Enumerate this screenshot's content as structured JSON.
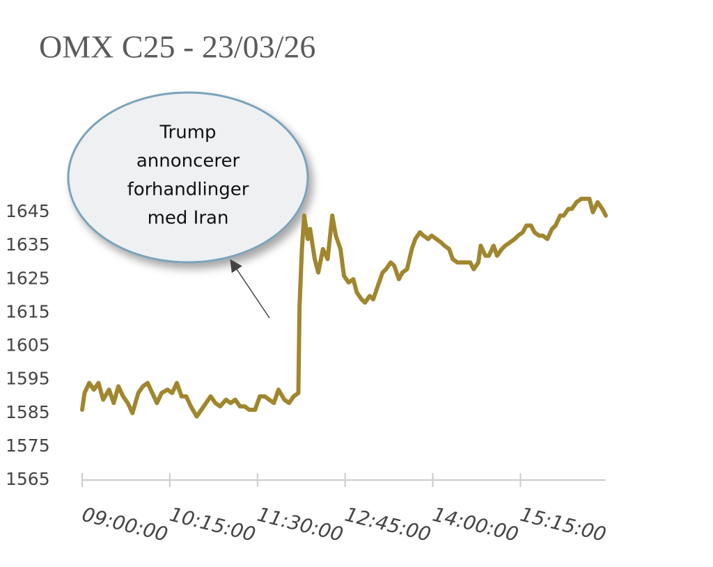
{
  "chart_data": {
    "type": "line",
    "title": "OMX C25 - 23/03/26",
    "annotation": [
      "Trump",
      "annoncerer",
      "forhandlinger",
      "med Iran"
    ],
    "x": [
      540,
      542,
      546,
      550,
      554,
      558,
      563,
      567,
      571,
      575,
      579,
      583,
      588,
      592,
      596,
      600,
      604,
      608,
      613,
      617,
      621,
      625,
      629,
      633,
      638,
      642,
      646,
      650,
      654,
      658,
      663,
      667,
      671,
      675,
      679,
      683,
      688,
      692,
      696,
      700,
      704,
      708,
      713,
      717,
      721,
      725,
      726,
      728,
      730,
      733,
      735,
      739,
      742,
      746,
      750,
      754,
      757,
      761,
      764,
      768,
      772,
      775,
      779,
      782,
      786,
      789,
      793,
      797,
      800,
      804,
      807,
      811,
      814,
      818,
      822,
      825,
      829,
      832,
      836,
      839,
      843,
      847,
      850,
      854,
      857,
      861,
      864,
      868,
      872,
      875,
      879,
      881,
      885,
      888,
      892,
      895,
      899,
      902,
      906,
      910,
      913,
      917,
      920,
      924,
      927,
      931,
      934,
      938,
      942,
      945,
      949,
      952,
      956,
      959,
      963,
      967,
      970,
      974,
      977,
      981,
      985,
      988
    ],
    "series": [
      {
        "color": "#a0862e",
        "values": [
          1586,
          1591,
          1594,
          1592,
          1594,
          1589,
          1592,
          1588,
          1593,
          1590,
          1588,
          1585,
          1591,
          1593,
          1594,
          1591,
          1588,
          1591,
          1592,
          1591,
          1594,
          1590,
          1590,
          1587,
          1584,
          1586,
          1588,
          1590,
          1588,
          1587,
          1589,
          1588,
          1589,
          1587,
          1587,
          1586,
          1586,
          1590,
          1590,
          1589,
          1588,
          1592,
          1589,
          1588,
          1590,
          1591,
          1617,
          1634,
          1644,
          1637,
          1640,
          1631,
          1627,
          1634,
          1631,
          1644,
          1638,
          1634,
          1626,
          1624,
          1625,
          1621,
          1619,
          1618,
          1620,
          1619,
          1623,
          1627,
          1628,
          1630,
          1629,
          1625,
          1627,
          1628,
          1634,
          1637,
          1639,
          1638,
          1637,
          1638,
          1637,
          1636,
          1635,
          1634,
          1631,
          1630,
          1630,
          1630,
          1630,
          1628,
          1630,
          1635,
          1632,
          1632,
          1635,
          1632,
          1634,
          1635,
          1636,
          1637,
          1638,
          1639,
          1641,
          1641,
          1639,
          1638,
          1638,
          1637,
          1640,
          1641,
          1644,
          1644,
          1646,
          1646,
          1648,
          1649,
          1649,
          1649,
          1645,
          1648,
          1646,
          1644
        ]
      }
    ],
    "xlim": [
      540,
      988
    ],
    "xticks": [
      {
        "value": 540,
        "label": "09:00:00"
      },
      {
        "value": 615,
        "label": "10:15:00"
      },
      {
        "value": 690,
        "label": "11:30:00"
      },
      {
        "value": 765,
        "label": "12:45:00"
      },
      {
        "value": 840,
        "label": "14:00:00"
      },
      {
        "value": 915,
        "label": "15:15:00"
      }
    ],
    "ylim": [
      1565,
      1650
    ],
    "yticks": [
      1565,
      1575,
      1585,
      1595,
      1605,
      1615,
      1625,
      1635,
      1645
    ],
    "grid": false
  }
}
